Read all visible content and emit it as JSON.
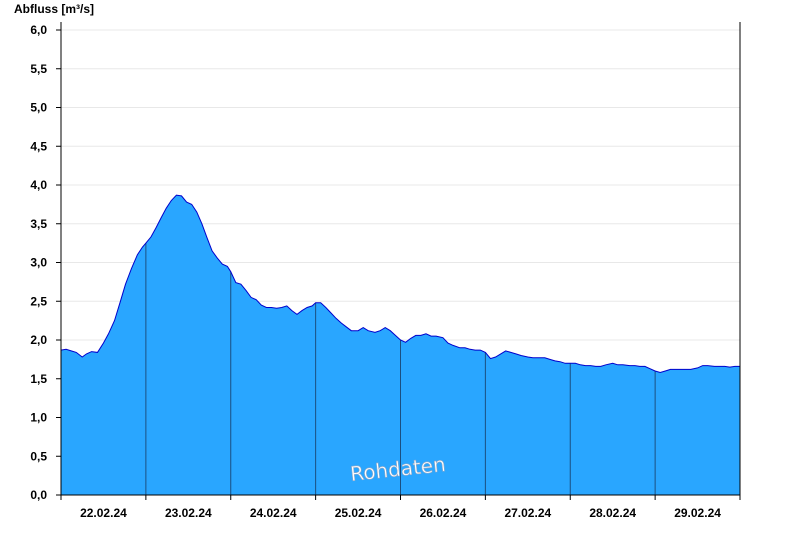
{
  "chart_data": {
    "type": "area",
    "ylabel": "Abfluss [m³/s]",
    "watermark": "Rohdaten",
    "ylim": [
      0,
      6
    ],
    "xlim": [
      0,
      8
    ],
    "yticks": [
      {
        "value": 0,
        "label": "0,0"
      },
      {
        "value": 0.5,
        "label": "0,5"
      },
      {
        "value": 1,
        "label": "1,0"
      },
      {
        "value": 1.5,
        "label": "1,5"
      },
      {
        "value": 2,
        "label": "2,0"
      },
      {
        "value": 2.5,
        "label": "2,5"
      },
      {
        "value": 3,
        "label": "3,0"
      },
      {
        "value": 3.5,
        "label": "3,5"
      },
      {
        "value": 4,
        "label": "4,0"
      },
      {
        "value": 4.5,
        "label": "4,5"
      },
      {
        "value": 5,
        "label": "5,0"
      },
      {
        "value": 5.5,
        "label": "5,5"
      },
      {
        "value": 6,
        "label": "6,0"
      }
    ],
    "xticks": [
      {
        "value": 0.5,
        "label": "22.02.24"
      },
      {
        "value": 1.5,
        "label": "23.02.24"
      },
      {
        "value": 2.5,
        "label": "24.02.24"
      },
      {
        "value": 3.5,
        "label": "25.02.24"
      },
      {
        "value": 4.5,
        "label": "26.02.24"
      },
      {
        "value": 5.5,
        "label": "27.02.24"
      },
      {
        "value": 6.5,
        "label": "28.02.24"
      },
      {
        "value": 7.5,
        "label": "29.02.24"
      }
    ],
    "day_boundaries": [
      1,
      2,
      3,
      4,
      5,
      6,
      7
    ],
    "grid": true,
    "colors": {
      "fill": "#29a6ff",
      "line": "#0000cc",
      "grid": "#e8e8e8",
      "axis": "#000000",
      "divider": "#1b4f80"
    },
    "series": [
      {
        "x": [
          0,
          0.06,
          0.12,
          0.18,
          0.25,
          0.3,
          0.36,
          0.43,
          0.5,
          0.56,
          0.63,
          0.7,
          0.76,
          0.83,
          0.9,
          0.96,
          1.0,
          1.06,
          1.12,
          1.18,
          1.24,
          1.3,
          1.36,
          1.42,
          1.48,
          1.54,
          1.6,
          1.66,
          1.72,
          1.78,
          1.84,
          1.9,
          1.96,
          2.0,
          2.06,
          2.12,
          2.18,
          2.24,
          2.3,
          2.36,
          2.42,
          2.48,
          2.54,
          2.6,
          2.66,
          2.72,
          2.78,
          2.84,
          2.9,
          2.96,
          3.0,
          3.06,
          3.12,
          3.18,
          3.24,
          3.3,
          3.36,
          3.42,
          3.5,
          3.56,
          3.62,
          3.7,
          3.76,
          3.82,
          3.88,
          3.94,
          4.0,
          4.06,
          4.12,
          4.18,
          4.24,
          4.3,
          4.36,
          4.42,
          4.5,
          4.56,
          4.62,
          4.7,
          4.76,
          4.82,
          4.88,
          4.94,
          5.0,
          5.06,
          5.12,
          5.18,
          5.24,
          5.3,
          5.36,
          5.42,
          5.5,
          5.56,
          5.62,
          5.7,
          5.76,
          5.82,
          5.88,
          5.94,
          6.0,
          6.06,
          6.12,
          6.18,
          6.24,
          6.3,
          6.36,
          6.42,
          6.5,
          6.56,
          6.62,
          6.7,
          6.76,
          6.82,
          6.88,
          6.94,
          7.0,
          7.06,
          7.12,
          7.18,
          7.24,
          7.3,
          7.36,
          7.42,
          7.5,
          7.56,
          7.62,
          7.7,
          7.76,
          7.82,
          7.88,
          7.94,
          8.0
        ],
        "y": [
          1.87,
          1.88,
          1.86,
          1.84,
          1.78,
          1.82,
          1.85,
          1.84,
          1.96,
          2.08,
          2.25,
          2.5,
          2.72,
          2.92,
          3.1,
          3.2,
          3.25,
          3.33,
          3.45,
          3.58,
          3.7,
          3.8,
          3.87,
          3.86,
          3.78,
          3.75,
          3.65,
          3.5,
          3.32,
          3.15,
          3.06,
          2.98,
          2.95,
          2.88,
          2.74,
          2.72,
          2.64,
          2.55,
          2.52,
          2.45,
          2.42,
          2.42,
          2.41,
          2.42,
          2.44,
          2.38,
          2.33,
          2.38,
          2.42,
          2.44,
          2.48,
          2.48,
          2.42,
          2.35,
          2.28,
          2.22,
          2.17,
          2.12,
          2.12,
          2.16,
          2.12,
          2.1,
          2.12,
          2.16,
          2.12,
          2.06,
          2.0,
          1.97,
          2.02,
          2.06,
          2.06,
          2.08,
          2.05,
          2.05,
          2.03,
          1.96,
          1.93,
          1.9,
          1.9,
          1.88,
          1.87,
          1.87,
          1.84,
          1.76,
          1.78,
          1.82,
          1.86,
          1.84,
          1.82,
          1.8,
          1.78,
          1.77,
          1.77,
          1.77,
          1.75,
          1.73,
          1.72,
          1.7,
          1.7,
          1.7,
          1.68,
          1.67,
          1.67,
          1.66,
          1.66,
          1.68,
          1.7,
          1.68,
          1.68,
          1.67,
          1.67,
          1.66,
          1.66,
          1.63,
          1.6,
          1.58,
          1.6,
          1.62,
          1.62,
          1.62,
          1.62,
          1.62,
          1.64,
          1.67,
          1.67,
          1.66,
          1.66,
          1.66,
          1.65,
          1.66,
          1.66
        ]
      }
    ]
  }
}
